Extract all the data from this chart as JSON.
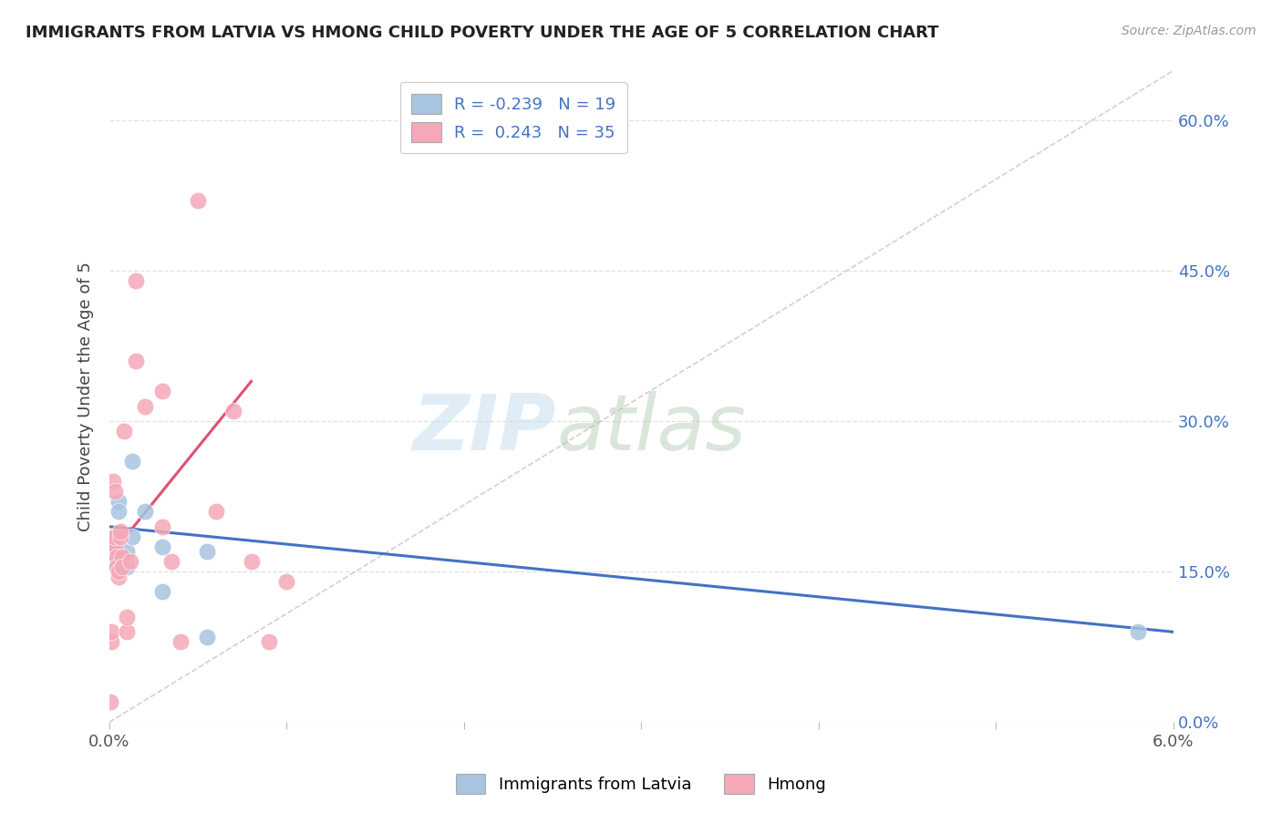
{
  "title": "IMMIGRANTS FROM LATVIA VS HMONG CHILD POVERTY UNDER THE AGE OF 5 CORRELATION CHART",
  "source": "Source: ZipAtlas.com",
  "ylabel": "Child Poverty Under the Age of 5",
  "legend_blue_r": "-0.239",
  "legend_blue_n": "19",
  "legend_pink_r": "0.243",
  "legend_pink_n": "35",
  "legend_label_blue": "Immigrants from Latvia",
  "legend_label_pink": "Hmong",
  "blue_scatter_x": [
    5e-05,
    0.0001,
    0.0002,
    0.0003,
    0.0004,
    0.0005,
    0.0005,
    0.0006,
    0.0007,
    0.001,
    0.001,
    0.0013,
    0.0013,
    0.002,
    0.003,
    0.003,
    0.0055,
    0.0055,
    0.058
  ],
  "blue_scatter_y": [
    0.185,
    0.175,
    0.165,
    0.16,
    0.155,
    0.22,
    0.21,
    0.16,
    0.155,
    0.17,
    0.155,
    0.185,
    0.26,
    0.21,
    0.175,
    0.13,
    0.17,
    0.085,
    0.09
  ],
  "pink_scatter_x": [
    5e-05,
    8e-05,
    0.0001,
    0.00015,
    0.0002,
    0.0002,
    0.00025,
    0.0003,
    0.0003,
    0.0003,
    0.0004,
    0.0004,
    0.0005,
    0.0005,
    0.0006,
    0.0006,
    0.0007,
    0.0007,
    0.0008,
    0.001,
    0.001,
    0.0012,
    0.0015,
    0.0015,
    0.002,
    0.003,
    0.003,
    0.0035,
    0.004,
    0.005,
    0.006,
    0.007,
    0.008,
    0.009,
    0.01
  ],
  "pink_scatter_y": [
    0.02,
    0.08,
    0.09,
    0.185,
    0.24,
    0.175,
    0.185,
    0.175,
    0.185,
    0.23,
    0.165,
    0.155,
    0.145,
    0.15,
    0.185,
    0.19,
    0.165,
    0.155,
    0.29,
    0.09,
    0.105,
    0.16,
    0.36,
    0.44,
    0.315,
    0.33,
    0.195,
    0.16,
    0.08,
    0.52,
    0.21,
    0.31,
    0.16,
    0.08,
    0.14
  ],
  "blue_line_x": [
    0.0,
    0.06
  ],
  "blue_line_y": [
    0.195,
    0.09
  ],
  "pink_line_x": [
    0.0,
    0.008
  ],
  "pink_line_y": [
    0.165,
    0.34
  ],
  "diag_line_x": [
    0.0,
    0.06
  ],
  "diag_line_y": [
    0.0,
    0.65
  ],
  "xlim": [
    0.0,
    0.06
  ],
  "ylim": [
    0.0,
    0.65
  ],
  "y_ticks": [
    0.0,
    0.15,
    0.3,
    0.45,
    0.6
  ],
  "x_tick_positions": [
    0.0,
    0.01,
    0.02,
    0.03,
    0.04,
    0.05,
    0.06
  ],
  "background_color": "#ffffff",
  "blue_scatter_color": "#a8c4e0",
  "pink_scatter_color": "#f4a8b8",
  "blue_line_color": "#4472c4",
  "pink_line_color": "#e05070",
  "diag_line_color": "#c8b8c0",
  "grid_color": "#e0e0e0"
}
